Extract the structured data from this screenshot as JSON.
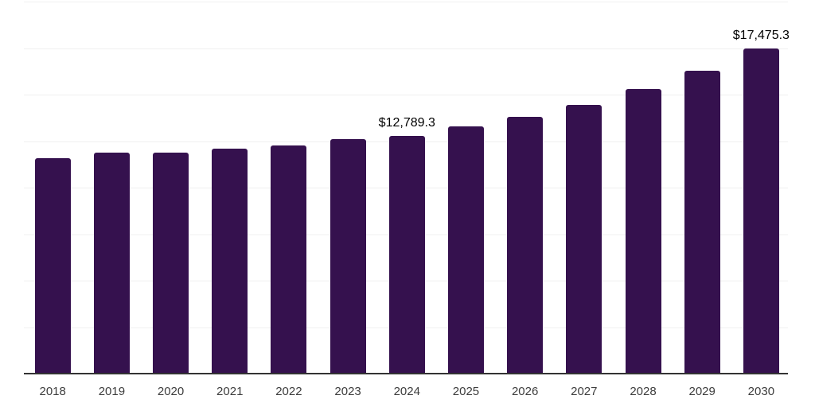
{
  "chart_data": {
    "type": "bar",
    "title": "",
    "categories": [
      "2018",
      "2019",
      "2020",
      "2021",
      "2022",
      "2023",
      "2024",
      "2025",
      "2026",
      "2027",
      "2028",
      "2029",
      "2030"
    ],
    "values": [
      11585,
      11885,
      11900,
      12100,
      12270,
      12600,
      12789.3,
      13270,
      13785,
      14455,
      15285,
      16270,
      17475.3
    ],
    "labeled_points": [
      {
        "category": "2024",
        "label": "$12,789.3"
      },
      {
        "category": "2030",
        "label": "$17,475.3"
      }
    ],
    "ylim": [
      0,
      20000
    ],
    "grid_step": 2500,
    "grid": true,
    "legend": false,
    "colors": {
      "bar": "#35114e",
      "grid": "#f0f0f0",
      "axis": "#333333",
      "data_label": "#000000",
      "tick_label": "#3d3d3d",
      "background": "#ffffff"
    }
  }
}
